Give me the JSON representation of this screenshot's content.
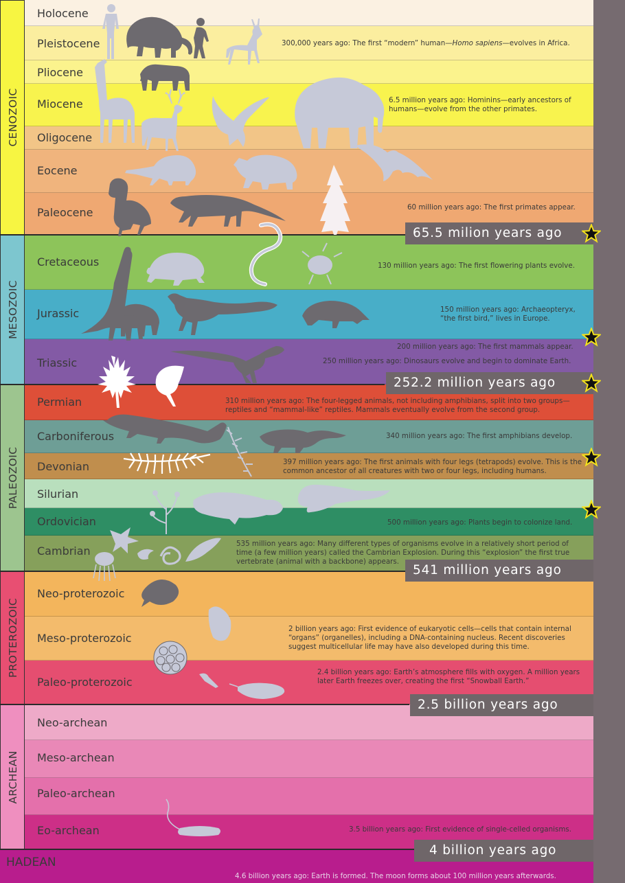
{
  "colors": {
    "silhouette": "#c6c9d8",
    "silhouette_dark": "#6d6a6f",
    "milestone_bg": "#6f6669",
    "star_fill": "#111111",
    "star_stroke": "#f4e21b"
  },
  "eras": [
    {
      "name": "CENOZOIC",
      "color": "#f7f542"
    },
    {
      "name": "MESOZOIC",
      "color": "#7dc6cf"
    },
    {
      "name": "PALEOZOIC",
      "color": "#9dc58f"
    },
    {
      "name": "PROTEROZOIC",
      "color": "#e84f72"
    },
    {
      "name": "ARCHEAN",
      "color": "#ef8fbf"
    }
  ],
  "hadean": {
    "name": "HADEAN",
    "color": "#b81d8d",
    "note": "4.6 billion years ago: Earth is formed. The moon forms about 100 million years afterwards."
  },
  "periods": [
    {
      "name": "Holocene",
      "color": "#fbf1e2"
    },
    {
      "name": "Pleistocene",
      "color": "#fbee9f"
    },
    {
      "name": "Pliocene",
      "color": "#fbf38d"
    },
    {
      "name": "Miocene",
      "color": "#f8f34e"
    },
    {
      "name": "Oligocene",
      "color": "#f2c587"
    },
    {
      "name": "Eocene",
      "color": "#f0b47d"
    },
    {
      "name": "Paleocene",
      "color": "#efa872"
    },
    {
      "name": "Cretaceous",
      "color": "#8dc45a"
    },
    {
      "name": "Jurassic",
      "color": "#48aec8"
    },
    {
      "name": "Triassic",
      "color": "#835aa5"
    },
    {
      "name": "Permian",
      "color": "#de4f38"
    },
    {
      "name": "Carboniferous",
      "color": "#6e9e96"
    },
    {
      "name": "Devonian",
      "color": "#c08e4d"
    },
    {
      "name": "Silurian",
      "color": "#b9dfbd"
    },
    {
      "name": "Ordovician",
      "color": "#2e8e64"
    },
    {
      "name": "Cambrian",
      "color": "#86a05b"
    },
    {
      "name": "Neo-proterozoic",
      "color": "#f3b55c"
    },
    {
      "name": "Meso-proterozoic",
      "color": "#f3bb6c"
    },
    {
      "name": "Paleo-proterozoic",
      "color": "#e54e70"
    },
    {
      "name": "Neo-archean",
      "color": "#eeaac8"
    },
    {
      "name": "Meso-archean",
      "color": "#e988b7"
    },
    {
      "name": "Paleo-archean",
      "color": "#e470ab"
    },
    {
      "name": "Eo-archean",
      "color": "#cd2f87"
    }
  ],
  "notes": {
    "pleistocene_pre": "300,000 years ago: The first “modern” human—",
    "pleistocene_species": "Homo sapiens",
    "pleistocene_post": "—evolves in Africa.",
    "miocene": "6.5 million years ago: Hominins—early ancestors of humans—evolve from the other primates.",
    "paleocene": "60 million years ago: The first primates appear.",
    "cretaceous": "130 million years ago: The first flowering plants evolve.",
    "jurassic": "150 million years ago: Archaeopteryx, “the first bird,” lives in Europe.",
    "triassic_mammals": "200 million years ago: The first mammals appear.",
    "triassic_dinosaurs": "250 million years ago: Dinosaurs evolve and begin to dominate  Earth.",
    "permian": "310 million years ago: The four-legged animals, not including amphibians, split into two groups—reptiles and “mammal-like” reptiles. Mammals eventually evolve from the second group.",
    "carboniferous": "340 million years ago: The first amphibians develop.",
    "devonian": "397 million years ago: The first animals with four legs (tetrapods) evolve. This is the common ancestor of all creatures with two or four legs, including humans.",
    "ordovician": "500 million years ago: Plants begin to colonize land.",
    "cambrian": "535 million years ago: Many different types of organisms evolve in a relatively short period of time (a few million years) called the Cambrian Explosion. During this “explosion” the first true vertebrate (animal with a backbone) appears.",
    "meso_proterozoic": "2 billion years ago: First evidence of eukaryotic cells—cells that contain internal “organs” (organelles), including a DNA-containing nucleus.  Recent discoveries suggest multicellular life may have also developed during this time.",
    "paleo_proterozoic": "2.4 billion years ago: Earth’s atmosphere fills with oxygen. A million years later Earth freezes over, creating the first “Snowball Earth.”",
    "eo_archean": "3.5 billion years ago: First evidence of single-celled organisms."
  },
  "milestones": [
    "65.5 milion years ago",
    "252.2 million years ago",
    "541 million years ago",
    "2.5 billion years ago",
    "4 billion years ago"
  ]
}
